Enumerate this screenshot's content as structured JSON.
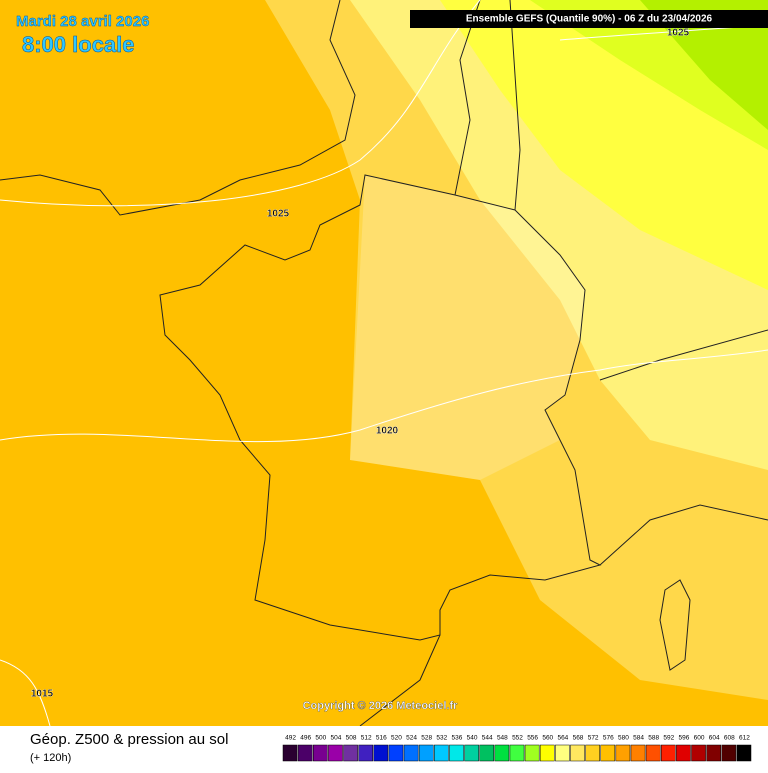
{
  "header": {
    "date": "Mardi 28 avril 2026",
    "time": "8:00 locale",
    "run": "Ensemble GEFS  (Quantile 90%) - 06 Z du 23/04/2026"
  },
  "isobars": [
    1025,
    1025,
    1020,
    1015
  ],
  "copyright": "Copyright © 2026 Meteociel.fr",
  "legend": {
    "title": "Géop. Z500 & pression au sol",
    "lead": "(+ 120h)",
    "scale": [
      {
        "value": 492,
        "color": "#2a0030"
      },
      {
        "value": 496,
        "color": "#4b0068"
      },
      {
        "value": 500,
        "color": "#780090"
      },
      {
        "value": 504,
        "color": "#9a00a8"
      },
      {
        "value": 508,
        "color": "#7030a0"
      },
      {
        "value": 512,
        "color": "#4020c0"
      },
      {
        "value": 516,
        "color": "#0010d0"
      },
      {
        "value": 520,
        "color": "#0040ff"
      },
      {
        "value": 524,
        "color": "#0070ff"
      },
      {
        "value": 528,
        "color": "#00a0ff"
      },
      {
        "value": 532,
        "color": "#00c8ff"
      },
      {
        "value": 536,
        "color": "#00e8e8"
      },
      {
        "value": 540,
        "color": "#00d0a0"
      },
      {
        "value": 544,
        "color": "#00c060"
      },
      {
        "value": 548,
        "color": "#00e040"
      },
      {
        "value": 552,
        "color": "#40ff40"
      },
      {
        "value": 556,
        "color": "#a0ff20"
      },
      {
        "value": 560,
        "color": "#ffff00"
      },
      {
        "value": 564,
        "color": "#ffff80"
      },
      {
        "value": 568,
        "color": "#ffe860"
      },
      {
        "value": 572,
        "color": "#ffd020"
      },
      {
        "value": 576,
        "color": "#ffc000"
      },
      {
        "value": 580,
        "color": "#ffa000"
      },
      {
        "value": 584,
        "color": "#ff8000"
      },
      {
        "value": 588,
        "color": "#ff5000"
      },
      {
        "value": 592,
        "color": "#ff2000"
      },
      {
        "value": 596,
        "color": "#e00000"
      },
      {
        "value": 600,
        "color": "#b00000"
      },
      {
        "value": 604,
        "color": "#800000"
      },
      {
        "value": 608,
        "color": "#500000"
      },
      {
        "value": 612,
        "color": "#000000"
      }
    ]
  }
}
